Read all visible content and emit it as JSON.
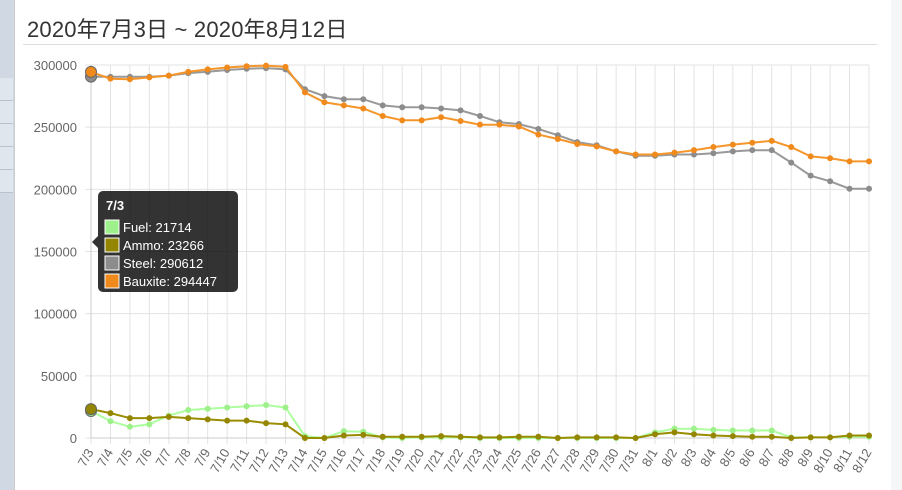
{
  "page": {
    "title": "2020年7月3日 ~ 2020年8月12日"
  },
  "chart_data": {
    "type": "line",
    "categories": [
      "7/3",
      "7/4",
      "7/5",
      "7/6",
      "7/7",
      "7/8",
      "7/9",
      "7/10",
      "7/11",
      "7/12",
      "7/13",
      "7/14",
      "7/15",
      "7/16",
      "7/17",
      "7/18",
      "7/19",
      "7/20",
      "7/21",
      "7/22",
      "7/23",
      "7/24",
      "7/25",
      "7/26",
      "7/27",
      "7/28",
      "7/29",
      "7/30",
      "7/31",
      "8/1",
      "8/2",
      "8/3",
      "8/4",
      "8/5",
      "8/6",
      "8/7",
      "8/8",
      "8/9",
      "8/10",
      "8/11",
      "8/12"
    ],
    "ylim": [
      0,
      300000
    ],
    "yticks": [
      0,
      50000,
      100000,
      150000,
      200000,
      250000,
      300000
    ],
    "grid": true,
    "series": [
      {
        "name": "Fuel",
        "color": "#adff9e",
        "marker": "#9ef08a",
        "values": [
          21714,
          13500,
          9000,
          11000,
          18000,
          22500,
          23500,
          24500,
          25500,
          26500,
          24500,
          1500,
          0,
          5500,
          5000,
          500,
          0,
          500,
          500,
          500,
          0,
          0,
          0,
          0,
          0,
          0,
          0,
          0,
          0,
          4500,
          7500,
          7500,
          6500,
          6000,
          6000,
          6000,
          500,
          500,
          500,
          1000,
          1000
        ]
      },
      {
        "name": "Ammo",
        "color": "#9a8c00",
        "marker": "#948600",
        "values": [
          23266,
          20000,
          16000,
          16000,
          17000,
          16000,
          15000,
          14000,
          14000,
          12000,
          11000,
          0,
          0,
          2000,
          2500,
          1000,
          1000,
          1000,
          1500,
          1000,
          500,
          500,
          1000,
          1000,
          0,
          500,
          500,
          500,
          0,
          3000,
          4500,
          3000,
          2000,
          1500,
          1000,
          1000,
          0,
          500,
          500,
          2000,
          2000
        ]
      },
      {
        "name": "Steel",
        "color": "#999999",
        "marker": "#8c8c8c",
        "values": [
          290612,
          290500,
          290500,
          290500,
          291500,
          293500,
          294500,
          296000,
          297000,
          297500,
          296500,
          280500,
          275000,
          272500,
          272500,
          267500,
          266000,
          266000,
          265000,
          263500,
          259000,
          254000,
          252500,
          248500,
          243500,
          238000,
          235500,
          230500,
          227000,
          227000,
          228000,
          228000,
          229000,
          230500,
          231500,
          231500,
          221500,
          211000,
          206500,
          200500,
          200500
        ]
      },
      {
        "name": "Bauxite",
        "color": "#f5962b",
        "marker": "#f08a1c",
        "values": [
          294447,
          289000,
          288500,
          290000,
          291500,
          294500,
          296500,
          298000,
          299000,
          299500,
          298500,
          278000,
          270000,
          267500,
          265000,
          259000,
          255500,
          255500,
          258000,
          255000,
          252000,
          252000,
          250500,
          244000,
          240500,
          236500,
          234500,
          230500,
          228000,
          228000,
          229500,
          231500,
          234000,
          236000,
          237500,
          239000,
          234000,
          226500,
          225000,
          222500,
          222500
        ]
      }
    ],
    "tooltip": {
      "title": "7/3",
      "lines": [
        "Fuel: 21714",
        "Ammo: 23266",
        "Steel: 290612",
        "Bauxite: 294447"
      ]
    }
  }
}
